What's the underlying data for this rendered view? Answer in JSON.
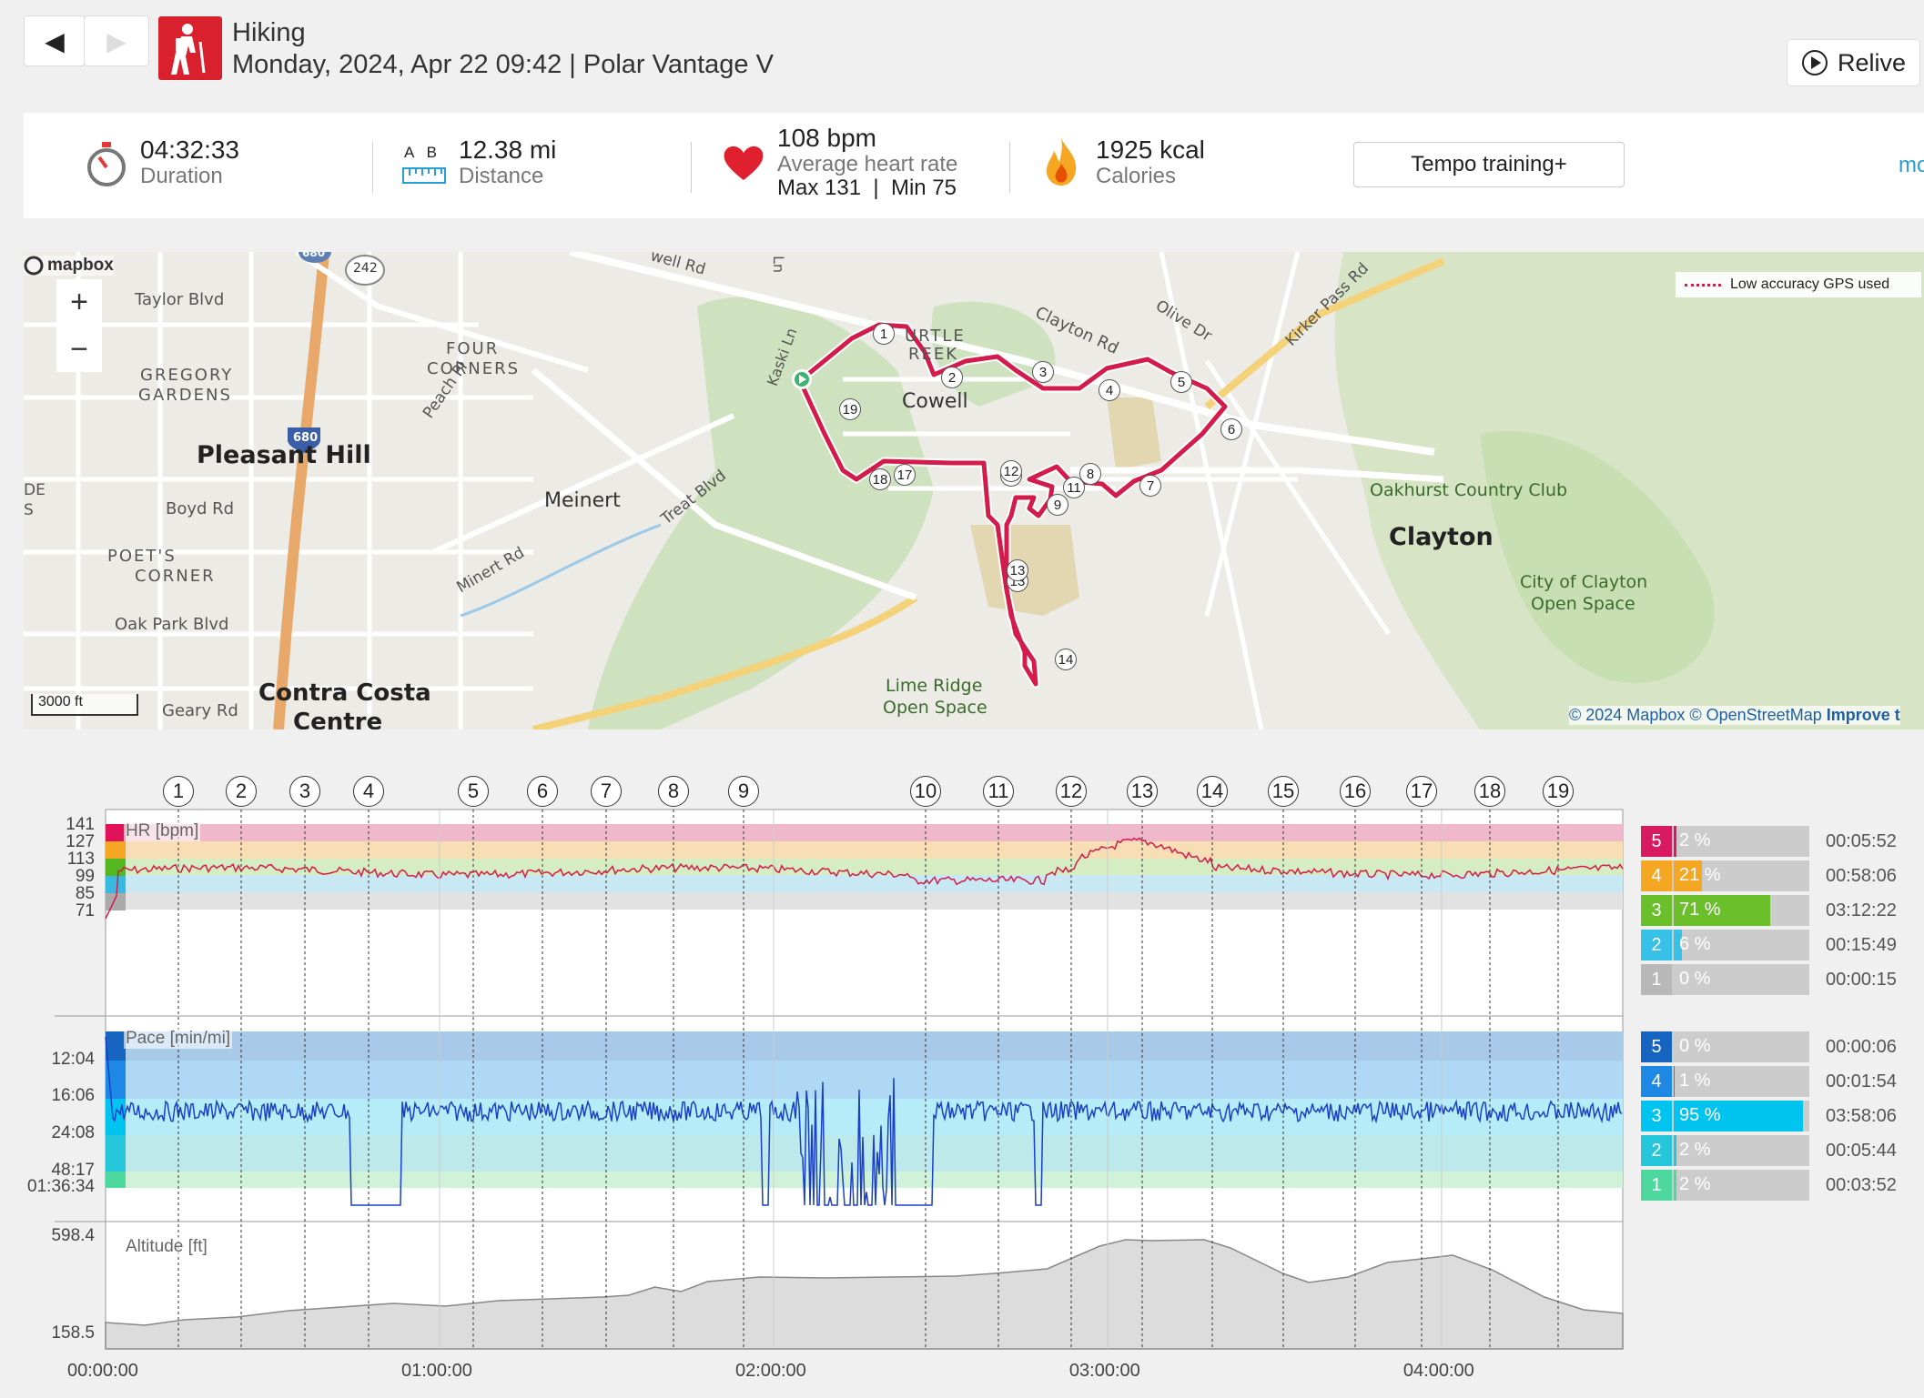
{
  "header": {
    "back_icon": "◀",
    "forward_icon": "▶",
    "sport": "Hiking",
    "subtitle": "Monday, 2024, Apr 22 09:42 | Polar Vantage V",
    "relive_label": "Relive"
  },
  "summary": {
    "duration_value": "04:32:33",
    "duration_label": "Duration",
    "distance_ab": "A   B",
    "distance_value": "12.38 mi",
    "distance_label": "Distance",
    "hr_value": "108 bpm",
    "hr_label": "Average heart rate",
    "hr_minmax": "Max 131  |  Min 75",
    "calories_value": "1925 kcal",
    "calories_label": "Calories",
    "training_label": "Tempo training+",
    "more_label": "mo"
  },
  "map": {
    "logo": "mapbox",
    "legend": "Low accuracy GPS used",
    "scale": "3000 ft",
    "attribution_1": "© 2024 Mapbox",
    "attribution_2": "© OpenStreetMap",
    "attribution_3": "Improve t",
    "zoom_in": "+",
    "zoom_out": "−",
    "places": {
      "pleasant_hill": "Pleasant Hill",
      "clayton": "Clayton",
      "contra_costa": "Contra Costa",
      "centre": "Centre",
      "meinert": "Meinert",
      "cowell": "Cowell",
      "four_corners_1": "FOUR",
      "four_corners_2": "CORNERS",
      "gregory_1": "GREGORY",
      "gregory_2": "GARDENS",
      "poets_1": "POET'S",
      "poets_2": "CORNER",
      "turtle_1": "URTLE",
      "turtle_2": "REEK",
      "oakhurst": "Oakhurst Country Club",
      "city_clayton_1": "City of Clayton",
      "city_clayton_2": "Open Space",
      "lime_1": "Lime Ridge",
      "lime_2": "Open Space",
      "de": "DE",
      "s": "S",
      "taylor": "Taylor Blvd",
      "boyd": "Boyd Rd",
      "oak_park": "Oak Park Blvd",
      "geary": "Geary Rd",
      "peach": "Peach Pl",
      "minert": "Minert Rd",
      "treat": "Treat Blvd",
      "clayton_rd": "Clayton Rd",
      "olive": "Olive Dr",
      "kirker": "Kirker Pass Rd",
      "kaski": "Kaski Ln",
      "well": "well Rd",
      "ln": "Ln",
      "hwy680": "680",
      "hwy242": "242",
      "hwy680b": "680"
    },
    "markers": [
      "1",
      "2",
      "3",
      "4",
      "5",
      "6",
      "7",
      "8",
      "9",
      "11",
      "12",
      "13",
      "14",
      "17",
      "18",
      "19",
      "12",
      "13"
    ]
  },
  "laps": [
    "1",
    "2",
    "3",
    "4",
    "5",
    "6",
    "7",
    "8",
    "9",
    "10",
    "11",
    "12",
    "13",
    "14",
    "15",
    "16",
    "17",
    "18",
    "19"
  ],
  "hr_chart": {
    "label": "HR [bpm]",
    "ticks": [
      "141",
      "127",
      "113",
      "99",
      "85",
      "71"
    ],
    "zones": [
      {
        "num": "5",
        "pct": "2 %",
        "time": "00:05:52",
        "color": "#d81b60",
        "fraction": 0.02
      },
      {
        "num": "4",
        "pct": "21 %",
        "time": "00:58:06",
        "color": "#f5a623",
        "fraction": 0.21
      },
      {
        "num": "3",
        "pct": "71 %",
        "time": "03:12:22",
        "color": "#6abf2a",
        "fraction": 0.71
      },
      {
        "num": "2",
        "pct": "6 %",
        "time": "00:15:49",
        "color": "#37c0e8",
        "fraction": 0.06
      },
      {
        "num": "1",
        "pct": "0 %",
        "time": "00:00:15",
        "color": "#b8b8b8",
        "fraction": 0.0
      }
    ]
  },
  "pace_chart": {
    "label": "Pace [min/mi]",
    "ticks": [
      "12:04",
      "16:06",
      "24:08",
      "48:17",
      "01:36:34"
    ],
    "zones": [
      {
        "num": "5",
        "pct": "0 %",
        "time": "00:00:06",
        "color": "#1565c0",
        "fraction": 0.0
      },
      {
        "num": "4",
        "pct": "1 %",
        "time": "00:01:54",
        "color": "#1e88e5",
        "fraction": 0.01
      },
      {
        "num": "3",
        "pct": "95 %",
        "time": "03:58:06",
        "color": "#00c4f0",
        "fraction": 0.95
      },
      {
        "num": "2",
        "pct": "2 %",
        "time": "00:05:44",
        "color": "#26c6da",
        "fraction": 0.02
      },
      {
        "num": "1",
        "pct": "2 %",
        "time": "00:03:52",
        "color": "#4dd8a0",
        "fraction": 0.02
      }
    ]
  },
  "alt_chart": {
    "label": "Altitude [ft]",
    "ticks": [
      "598.4",
      "158.5"
    ]
  },
  "time_axis": [
    "00:00:00",
    "01:00:00",
    "02:00:00",
    "03:00:00",
    "04:00:00"
  ]
}
